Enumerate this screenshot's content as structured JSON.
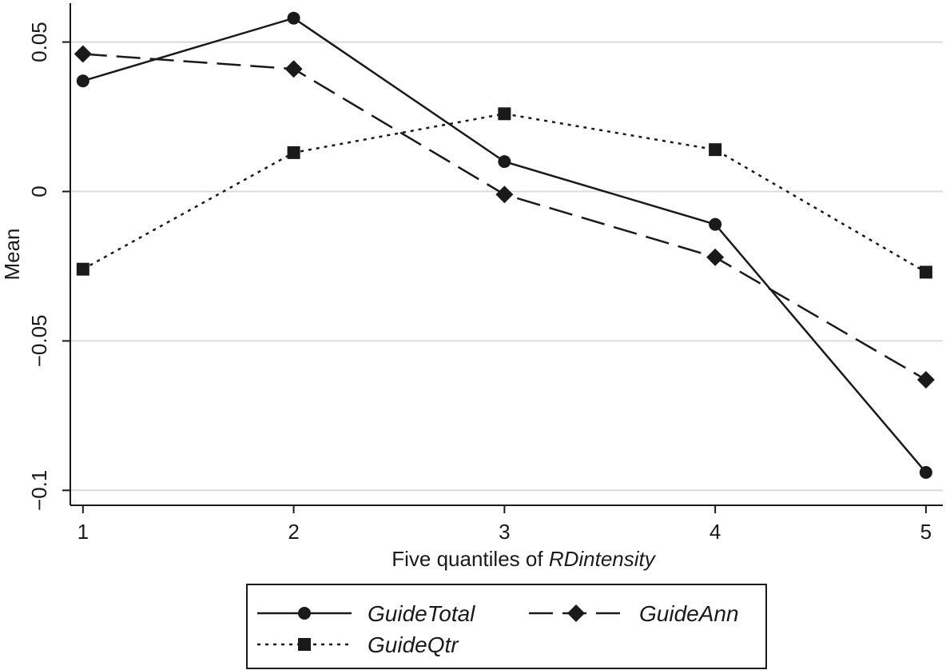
{
  "chart_data": {
    "type": "line",
    "title": "",
    "xlabel": "Five quantiles of ",
    "xlabel_italic": "RDintensity",
    "ylabel": "Mean",
    "x": [
      1,
      2,
      3,
      4,
      5
    ],
    "xticks": [
      "1",
      "2",
      "3",
      "4",
      "5"
    ],
    "yticks": [
      {
        "value": 0.05,
        "label": "0.05"
      },
      {
        "value": 0,
        "label": "0"
      },
      {
        "value": -0.05,
        "label": "−0.05"
      },
      {
        "value": -0.1,
        "label": "−0.1"
      }
    ],
    "ylim": [
      -0.105,
      0.063
    ],
    "xlim": [
      0.94,
      5.08
    ],
    "grid": true,
    "legend_position": "bottom",
    "series": [
      {
        "name": "GuideTotal",
        "values": [
          0.037,
          0.058,
          0.01,
          -0.011,
          -0.094
        ],
        "marker": "circle",
        "dash": "solid",
        "color": "#1a1a1a"
      },
      {
        "name": "GuideAnn",
        "values": [
          0.046,
          0.041,
          -0.001,
          -0.022,
          -0.063
        ],
        "marker": "diamond",
        "dash": "dashed",
        "color": "#1a1a1a"
      },
      {
        "name": "GuideQtr",
        "values": [
          -0.026,
          0.013,
          0.026,
          0.014,
          -0.027
        ],
        "marker": "square",
        "dash": "dotted",
        "color": "#1a1a1a"
      }
    ]
  }
}
